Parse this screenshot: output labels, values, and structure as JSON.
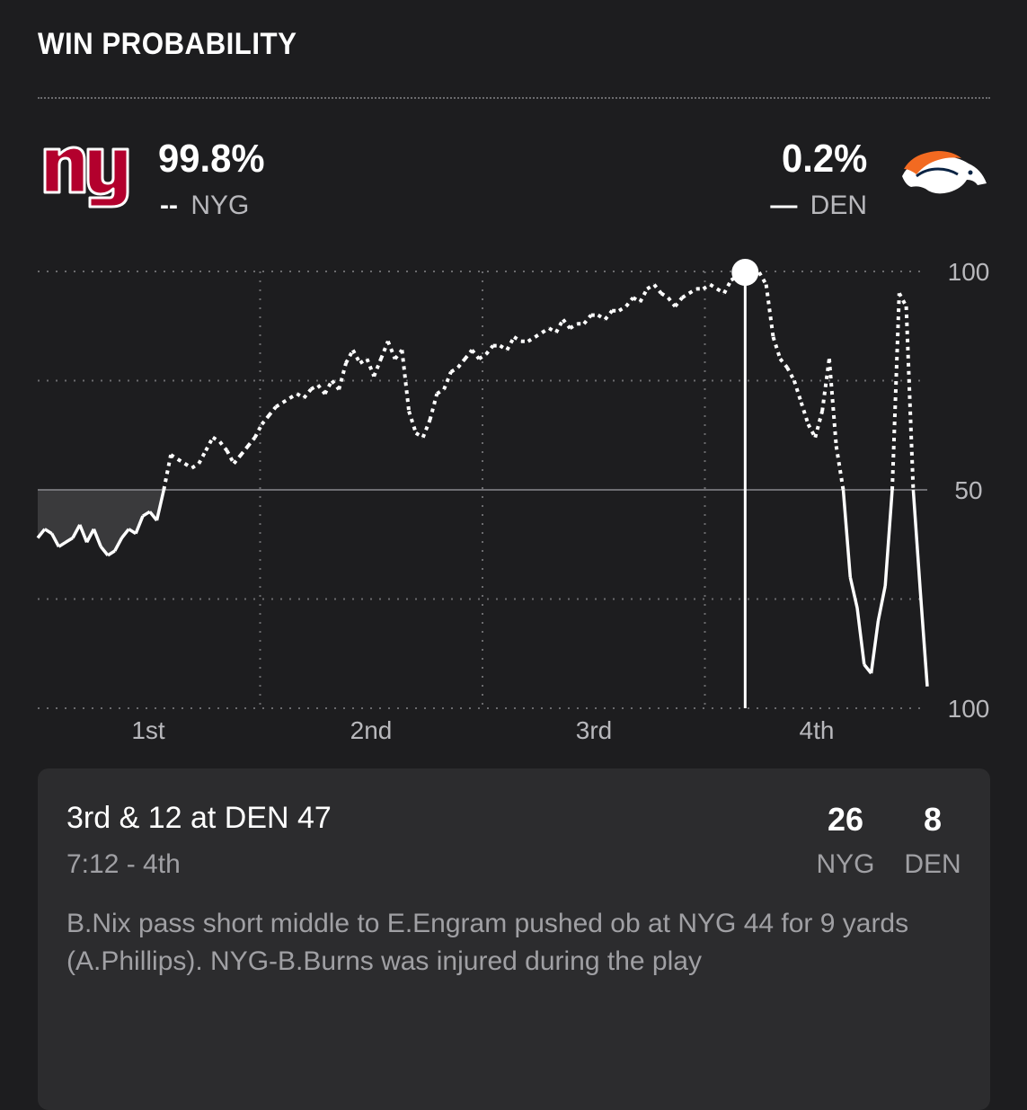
{
  "header": {
    "title": "WIN PROBABILITY"
  },
  "teams": {
    "home": {
      "abbr": "NYG",
      "pct": "99.8%",
      "legend": "--",
      "logo_icon": "ny-giants-logo-icon",
      "color": "#b3002d"
    },
    "away": {
      "abbr": "DEN",
      "pct": "0.2%",
      "legend": "—",
      "logo_icon": "broncos-logo-icon",
      "color": "#f26a21"
    }
  },
  "chart_data": {
    "type": "line",
    "x_labels": [
      "1st",
      "2nd",
      "3rd",
      "4th"
    ],
    "y_tick_labels": [
      "100",
      "50",
      "100"
    ],
    "ylim": [
      0,
      100
    ],
    "grid": true,
    "series": [
      {
        "name": "NYG",
        "values": [
          39,
          41,
          40,
          37,
          38,
          39,
          42,
          38,
          41,
          37,
          35,
          36,
          39,
          41,
          40,
          44,
          45,
          43,
          50,
          58,
          57,
          56,
          55,
          56,
          59,
          62,
          61,
          59,
          56,
          58,
          60,
          62,
          65,
          67,
          69,
          70,
          71,
          72,
          71,
          73,
          74,
          72,
          75,
          73,
          79,
          82,
          79,
          80,
          76,
          80,
          84,
          80,
          82,
          68,
          63,
          62,
          66,
          72,
          73,
          77,
          78,
          80,
          82,
          80,
          81,
          83,
          83,
          82,
          85,
          84,
          84,
          85,
          86,
          87,
          86,
          89,
          87,
          88,
          88,
          90,
          90,
          89,
          91,
          91,
          92,
          94,
          93,
          96,
          97,
          95,
          94,
          92,
          94,
          95,
          96,
          96,
          97,
          96,
          95,
          98,
          99,
          99.8,
          99.8,
          99.8,
          97,
          85,
          80,
          78,
          75,
          70,
          65,
          62,
          68,
          80,
          60,
          50,
          30,
          23,
          10,
          8,
          20,
          28,
          50,
          95,
          92,
          50,
          27,
          5
        ]
      }
    ],
    "marker": {
      "label": "4th",
      "value": 99.8
    }
  },
  "play": {
    "title": "3rd & 12 at DEN 47",
    "time": "7:12 - 4th",
    "description": "B.Nix pass short middle to E.Engram pushed ob at NYG 44 for 9 yards (A.Phillips). NYG-B.Burns was injured during the play",
    "scores": [
      {
        "value": "26",
        "abbr": "NYG"
      },
      {
        "value": "8",
        "abbr": "DEN"
      }
    ]
  }
}
